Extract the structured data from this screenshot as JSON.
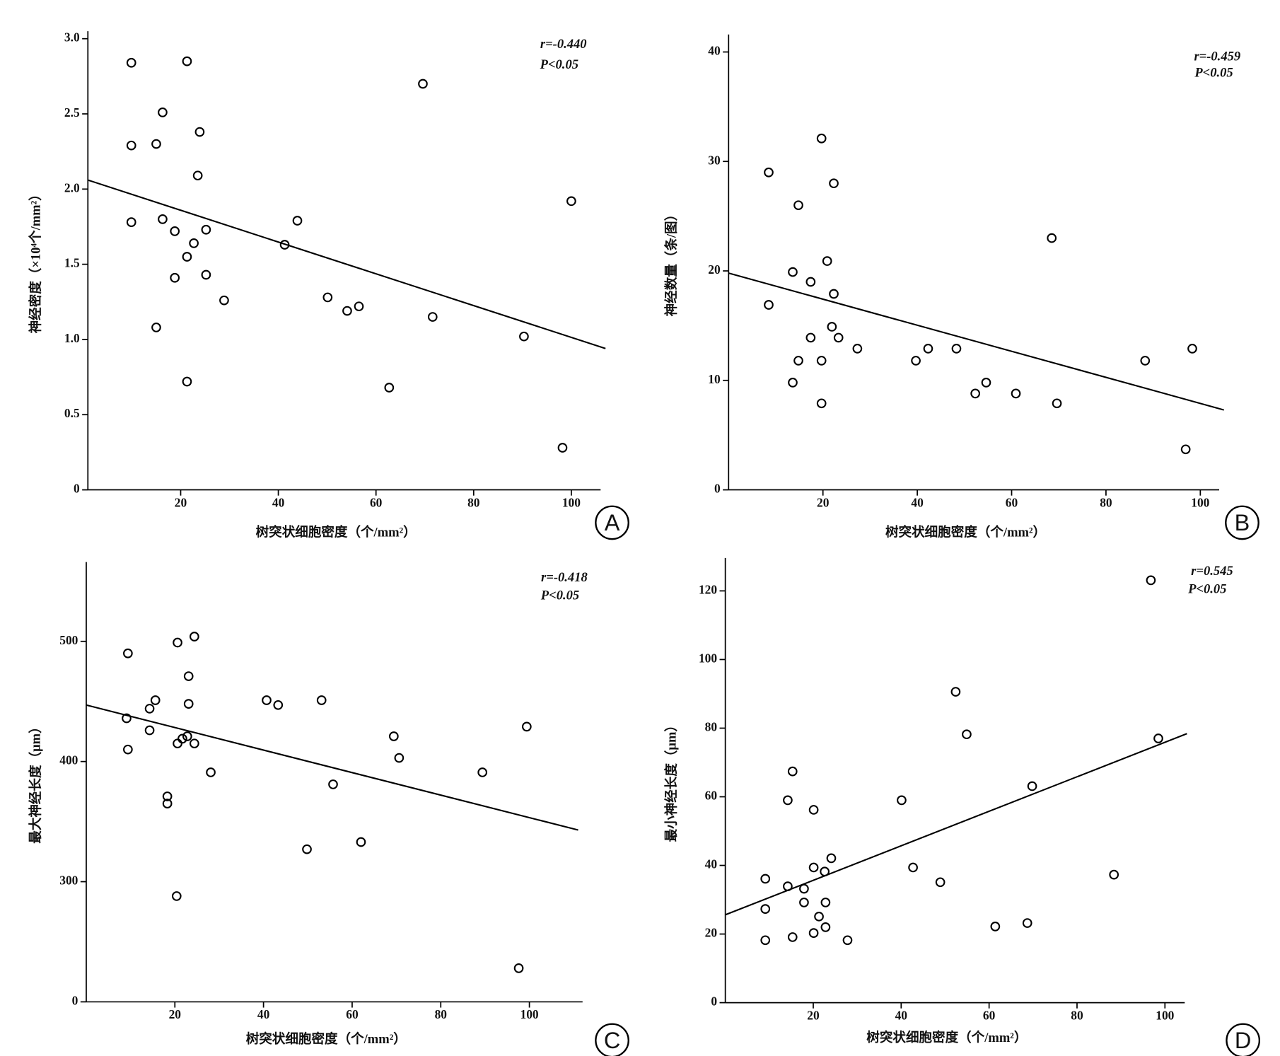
{
  "chart_data": [
    {
      "type": "scatter",
      "panel": "A",
      "color": "#000000",
      "y_label": "神经密度（×10⁴个/mm²）",
      "x_label": "树突状细胞密度（个/mm²）",
      "annotations": [
        "r=-0.440",
        "P<0.05"
      ],
      "xlim": [
        1,
        106
      ],
      "ylim": [
        0,
        3.05
      ],
      "xticks": [
        20,
        40,
        60,
        80,
        100
      ],
      "yticks": [
        0,
        0.5,
        {
          "value": 1,
          "label": "1.0"
        },
        1.5,
        {
          "value": 2,
          "label": "2.0"
        },
        2.5,
        {
          "value": 3,
          "label": "3.0"
        }
      ],
      "x": [
        9.9,
        21.3,
        16.3,
        23.9,
        9.9,
        15.0,
        23.5,
        9.9,
        16.3,
        18.8,
        25.2,
        22.7,
        21.3,
        18.8,
        25.2,
        28.9,
        15.0,
        21.3,
        43.9,
        41.3,
        50.1,
        54.1,
        56.5,
        62.7,
        69.6,
        71.6,
        90.3,
        98.2,
        100.0
      ],
      "y": [
        2.84,
        2.85,
        2.51,
        2.38,
        2.29,
        2.3,
        2.09,
        1.78,
        1.8,
        1.72,
        1.73,
        1.64,
        1.55,
        1.41,
        1.43,
        1.26,
        1.08,
        0.72,
        1.79,
        1.63,
        1.28,
        1.19,
        1.22,
        0.68,
        2.7,
        1.15,
        1.02,
        0.28,
        1.92
      ],
      "fit": {
        "x": [
          1,
          107
        ],
        "y": [
          2.06,
          0.94
        ]
      }
    },
    {
      "type": "scatter",
      "panel": "B",
      "color": "#000000",
      "y_label": "神经数量（条/图）",
      "x_label": "树突状细胞密度（个/mm²）",
      "annotations": [
        "r=-0.459",
        "P<0.05"
      ],
      "xlim": [
        0,
        104
      ],
      "ylim": [
        0,
        41.6
      ],
      "xticks": [
        20,
        40,
        60,
        80,
        100
      ],
      "yticks": [
        0,
        10,
        20,
        30,
        40
      ],
      "x": [
        8.5,
        8.5,
        14.8,
        13.6,
        13.6,
        14.8,
        17.4,
        17.4,
        19.7,
        19.7,
        19.7,
        20.9,
        22.3,
        22.3,
        21.9,
        23.3,
        27.3,
        39.7,
        42.3,
        48.3,
        52.3,
        54.6,
        60.9,
        68.5,
        69.6,
        88.3,
        98.3,
        96.9
      ],
      "y": [
        29.0,
        16.9,
        26.0,
        19.9,
        9.8,
        11.8,
        19.0,
        13.9,
        32.1,
        11.8,
        7.9,
        20.9,
        28.0,
        17.9,
        14.9,
        13.9,
        12.9,
        11.8,
        12.9,
        12.9,
        8.8,
        9.8,
        8.8,
        23.0,
        7.9,
        11.8,
        12.9,
        3.7
      ],
      "fit": {
        "x": [
          0,
          105
        ],
        "y": [
          19.8,
          7.3
        ]
      }
    },
    {
      "type": "scatter",
      "panel": "C",
      "color": "#000000",
      "y_label": "最大神经长度（μm）",
      "x_label": "树突状细胞密度（个/mm²）",
      "annotations": [
        "r=-0.418",
        "P<0.05"
      ],
      "xlim": [
        0,
        112
      ],
      "ylim": [
        200,
        566
      ],
      "xticks": [
        20,
        40,
        60,
        80,
        100
      ],
      "yticks": [
        {
          "value": 200,
          "label": "0"
        },
        300,
        400,
        500
      ],
      "x": [
        9.4,
        9.1,
        9.4,
        14.3,
        14.3,
        15.6,
        20.6,
        24.4,
        23.1,
        23.1,
        20.6,
        21.7,
        22.8,
        24.4,
        18.3,
        18.3,
        28.1,
        20.4,
        40.7,
        43.3,
        53.1,
        49.8,
        55.7,
        62.0,
        69.4,
        70.6,
        89.4,
        99.4,
        97.6
      ],
      "y": [
        490,
        436,
        410,
        444,
        426,
        451,
        499,
        504,
        471,
        448,
        415,
        419,
        421,
        415,
        371,
        365,
        391,
        288,
        451,
        447,
        451,
        327,
        381,
        333,
        421,
        403,
        391,
        429,
        228
      ],
      "fit": {
        "x": [
          0,
          111
        ],
        "y": [
          447,
          343
        ]
      }
    },
    {
      "type": "scatter",
      "panel": "D",
      "color": "#000000",
      "y_label": "最小神经长度（μm）",
      "x_label": "树突状细胞密度（个/mm²）",
      "annotations": [
        "r=0.545",
        "P<0.05"
      ],
      "xlim": [
        0,
        104.5
      ],
      "ylim": [
        0,
        129.6
      ],
      "xticks": [
        20,
        40,
        60,
        80,
        100
      ],
      "yticks": [
        0,
        20,
        40,
        60,
        80,
        100,
        120
      ],
      "x": [
        9.1,
        9.1,
        9.1,
        14.2,
        14.2,
        15.3,
        15.3,
        17.9,
        17.9,
        20.1,
        20.1,
        20.1,
        21.3,
        22.6,
        22.8,
        22.8,
        24.1,
        27.8,
        40.1,
        42.7,
        48.9,
        52.4,
        54.9,
        61.4,
        68.7,
        69.8,
        88.4,
        96.8,
        98.5
      ],
      "y": [
        36.1,
        27.3,
        18.2,
        59.0,
        33.9,
        67.4,
        19.1,
        33.2,
        29.2,
        56.2,
        39.4,
        20.3,
        25.1,
        38.2,
        29.2,
        22.0,
        42.1,
        18.2,
        59.0,
        39.4,
        35.1,
        90.6,
        78.2,
        22.2,
        23.2,
        63.1,
        37.3,
        123.1,
        77.0
      ],
      "fit": {
        "x": [
          0,
          105
        ],
        "y": [
          25.6,
          78.4
        ]
      }
    }
  ]
}
